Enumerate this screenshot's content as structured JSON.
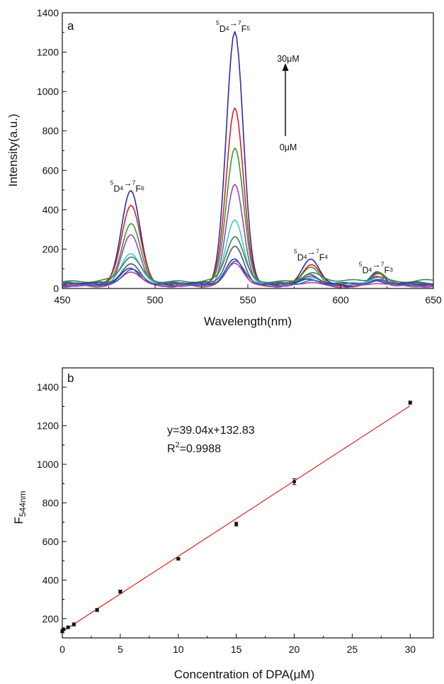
{
  "chart_data": [
    {
      "type": "line",
      "panel_label": "a",
      "xlabel": "Wavelength(nm)",
      "ylabel": "Intensity(a.u.)",
      "xlim": [
        450,
        650
      ],
      "ylim": [
        0,
        1400
      ],
      "x_ticks": [
        "450",
        "500",
        "550",
        "600",
        "650"
      ],
      "y_ticks": [
        "0",
        "200",
        "400",
        "600",
        "800",
        "1000",
        "1200",
        "1400"
      ],
      "arrow": {
        "top_label": "30μM",
        "bottom_label": "0μM"
      },
      "peak_annotations": [
        {
          "pre": "5",
          "mid": "D",
          "sub1": "4",
          "sup2": "7",
          "post": "F",
          "sub2": "6",
          "x": 485,
          "y": 510
        },
        {
          "pre": "5",
          "mid": "D",
          "sub1": "4",
          "sup2": "7",
          "post": "F",
          "sub2": "5",
          "x": 542,
          "y": 1320
        },
        {
          "pre": "5",
          "mid": "D",
          "sub1": "4",
          "sup2": "7",
          "post": "F",
          "sub2": "4",
          "x": 584,
          "y": 160
        },
        {
          "pre": "5",
          "mid": "D",
          "sub1": "4",
          "sup2": "7",
          "post": "F",
          "sub2": "3",
          "x": 619,
          "y": 95
        }
      ],
      "series": [
        {
          "color": "#2b2bb0",
          "peaks": [
            485,
            1290,
            135,
            75
          ],
          "base": 15
        },
        {
          "color": "#e02020",
          "peaks": [
            410,
            905,
            100,
            60
          ],
          "base": 20
        },
        {
          "color": "#2ca02c",
          "peaks": [
            305,
            690,
            80,
            50
          ],
          "base": 25
        },
        {
          "color": "#a040c0",
          "peaks": [
            255,
            510,
            60,
            40
          ],
          "base": 15
        },
        {
          "color": "#40c8d8",
          "peaks": [
            160,
            330,
            45,
            30
          ],
          "base": 18
        },
        {
          "color": "#2e8b57",
          "peaks": [
            120,
            225,
            40,
            25
          ],
          "base": 38
        },
        {
          "color": "#555555",
          "peaks": [
            95,
            185,
            30,
            20
          ],
          "base": 25
        },
        {
          "color": "#1f3fa0",
          "peaks": [
            85,
            130,
            25,
            18
          ],
          "base": 20
        },
        {
          "color": "#c04080",
          "peaks": [
            80,
            125,
            22,
            15
          ],
          "base": 12
        },
        {
          "color": "#3b5bd0",
          "peaks": [
            75,
            120,
            20,
            15
          ],
          "base": 22
        }
      ]
    },
    {
      "type": "scatter",
      "panel_label": "b",
      "xlabel": "Concentration of DPA(μM)",
      "ylabel_main": "F",
      "ylabel_sub": "544nm",
      "xlim": [
        0,
        32
      ],
      "ylim": [
        100,
        1500
      ],
      "x_ticks": [
        "0",
        "5",
        "10",
        "15",
        "20",
        "25",
        "30"
      ],
      "y_ticks": [
        "200",
        "400",
        "600",
        "800",
        "1000",
        "1200",
        "1400"
      ],
      "equation": "y=39.04x+132.83",
      "r2_label": "R",
      "r2_sup": "2",
      "r2_value": "=0.9988",
      "fit": {
        "slope": 39.04,
        "intercept": 132.83,
        "x_range": [
          0,
          30
        ],
        "color": "#e02020"
      },
      "points": [
        {
          "x": 0,
          "y": 135,
          "err": 8
        },
        {
          "x": 0.1,
          "y": 145,
          "err": 6
        },
        {
          "x": 0.5,
          "y": 155,
          "err": 6
        },
        {
          "x": 1,
          "y": 170,
          "err": 8
        },
        {
          "x": 3,
          "y": 245,
          "err": 8
        },
        {
          "x": 5,
          "y": 340,
          "err": 8
        },
        {
          "x": 10,
          "y": 510,
          "err": 6
        },
        {
          "x": 15,
          "y": 690,
          "err": 10
        },
        {
          "x": 20,
          "y": 910,
          "err": 15
        },
        {
          "x": 30,
          "y": 1320,
          "err": 8
        }
      ]
    }
  ]
}
